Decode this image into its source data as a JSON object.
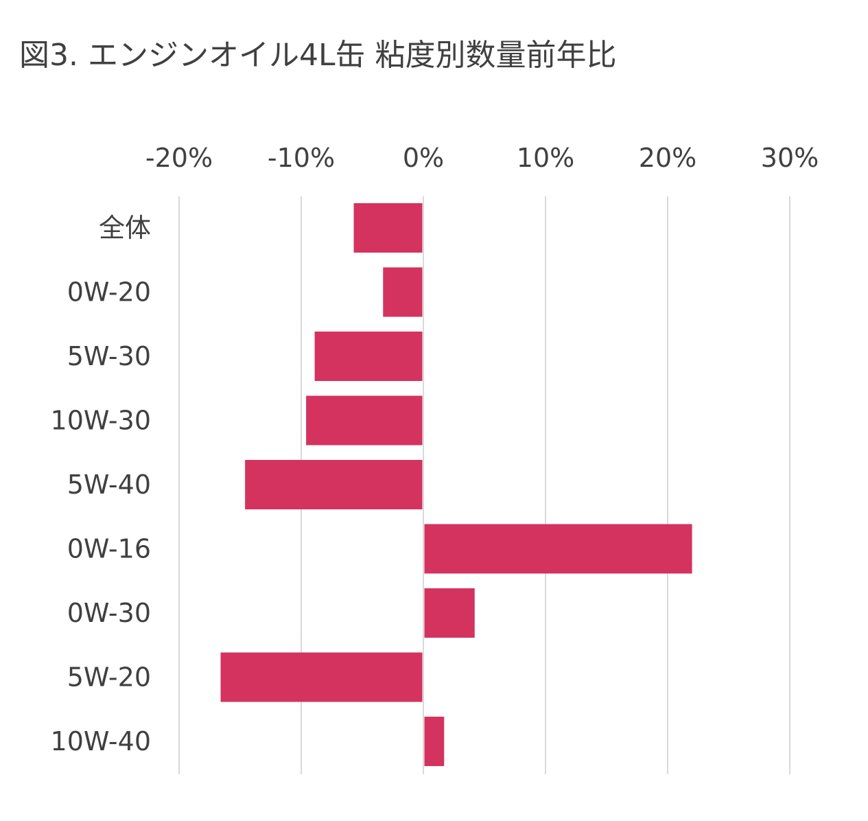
{
  "chart_data": {
    "type": "bar",
    "orientation": "horizontal",
    "title": "図3. エンジンオイル4L缶 粘度別数量前年比",
    "xlabel": "",
    "ylabel": "",
    "categories": [
      "全体",
      "0W-20",
      "5W-30",
      "10W-30",
      "5W-40",
      "0W-16",
      "0W-30",
      "5W-20",
      "10W-40"
    ],
    "values": [
      -5.7,
      -3.3,
      -8.9,
      -9.6,
      -14.6,
      22.0,
      4.2,
      -16.6,
      1.7
    ],
    "xlim": [
      -20,
      30
    ],
    "xticks": [
      -20,
      -10,
      0,
      10,
      20,
      30
    ],
    "tick_labels": [
      "-20%",
      "-10%",
      "0%",
      "10%",
      "20%",
      "30%"
    ],
    "axis_position": "top",
    "grid": true,
    "bar_color": "#d4335f",
    "grid_color": "#d9d9d9",
    "text_color": "#404040"
  }
}
